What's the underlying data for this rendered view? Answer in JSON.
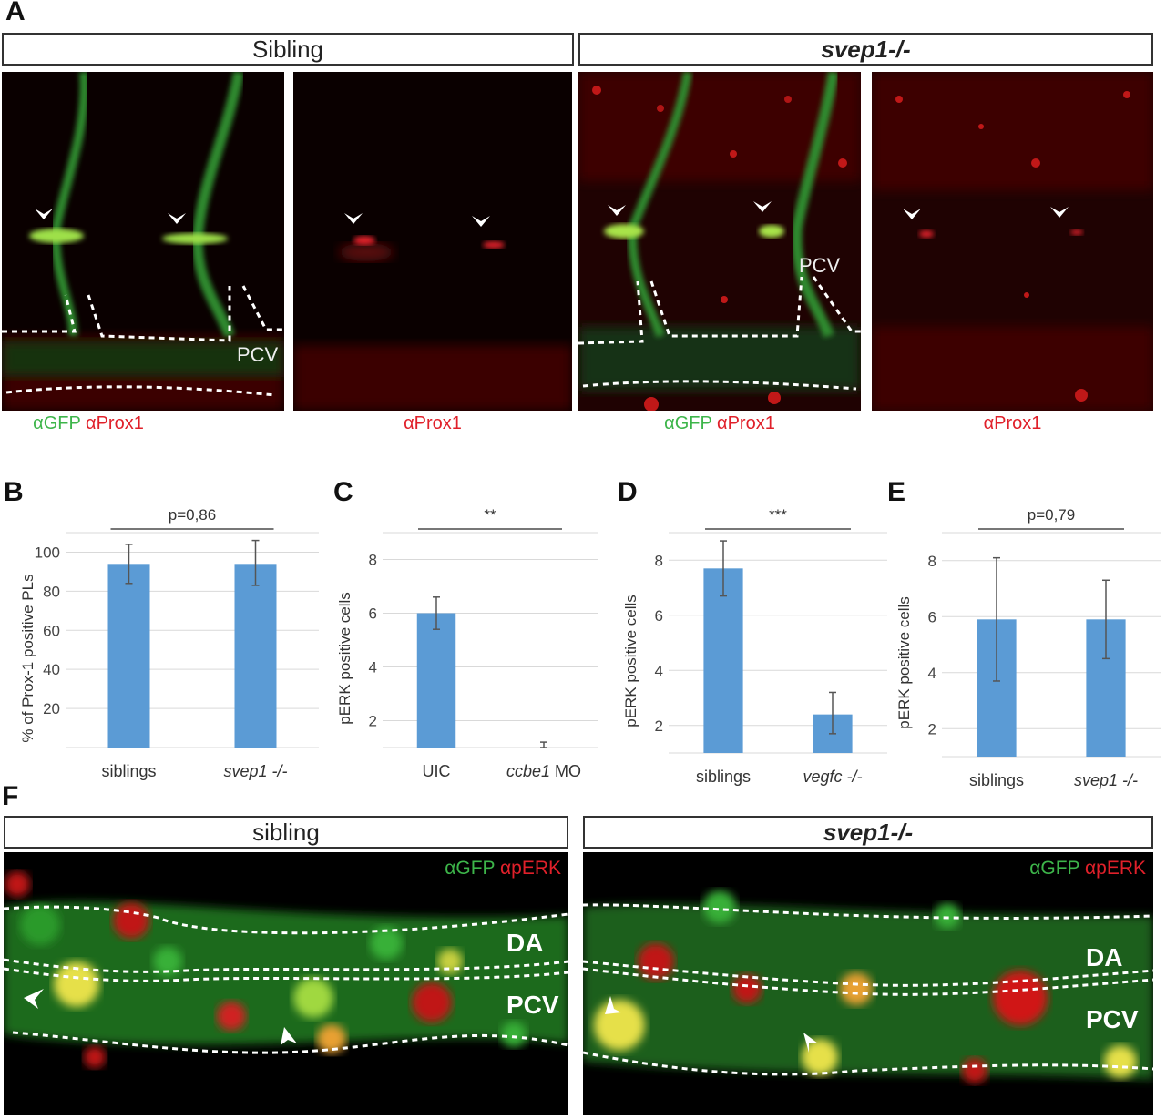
{
  "panel_labels": {
    "a": "A",
    "b": "B",
    "c": "C",
    "d": "D",
    "e": "E",
    "f": "F"
  },
  "panel_a": {
    "header_left": "Sibling",
    "header_right": "svep1-/-",
    "captions": [
      {
        "green": "αGFP",
        "red": "αProx1"
      },
      {
        "green": "",
        "red": "αProx1"
      },
      {
        "green": "αGFP",
        "red": "αProx1"
      },
      {
        "green": "",
        "red": "αProx1"
      }
    ],
    "pcv_label": "PCV"
  },
  "panel_f": {
    "header_left": "sibling",
    "header_right": "svep1-/-",
    "stain_green": "αGFP",
    "stain_red": "αpERK",
    "da_label": "DA",
    "pcv_label": "PCV"
  },
  "chart_data": [
    {
      "panel": "B",
      "type": "bar",
      "categories": [
        "siblings",
        "svep1 -/-"
      ],
      "italic_categories": [
        false,
        true
      ],
      "values": [
        94,
        94
      ],
      "error_low": [
        84,
        83
      ],
      "error_high": [
        104,
        106
      ],
      "ylabel": "% of Prox-1 positive PLs",
      "ylim": [
        0,
        110
      ],
      "yticks": [
        20,
        40,
        60,
        80,
        100
      ],
      "significance": "p=0,86",
      "color": "#5b9bd5"
    },
    {
      "panel": "C",
      "type": "bar",
      "categories": [
        "UIC",
        "ccbe1 MO"
      ],
      "category_parts": [
        [
          {
            "t": "UIC",
            "i": false
          }
        ],
        [
          {
            "t": "ccbe1",
            "i": true
          },
          {
            "t": " MO",
            "i": false
          }
        ]
      ],
      "values": [
        6.0,
        0.2
      ],
      "error_low": [
        5.4,
        0.0
      ],
      "error_high": [
        6.6,
        1.2
      ],
      "ylabel": "pERK positive cells",
      "ylim": [
        1,
        9
      ],
      "yticks": [
        2,
        4,
        6,
        8
      ],
      "significance": "**",
      "color": "#5b9bd5"
    },
    {
      "panel": "D",
      "type": "bar",
      "categories": [
        "siblings",
        "vegfc -/-"
      ],
      "italic_categories": [
        false,
        true
      ],
      "values": [
        7.7,
        2.4
      ],
      "error_low": [
        6.7,
        1.7
      ],
      "error_high": [
        8.7,
        3.2
      ],
      "ylabel": "pERK positive cells",
      "ylim": [
        1,
        9
      ],
      "yticks": [
        2,
        4,
        6,
        8
      ],
      "significance": "***",
      "color": "#5b9bd5"
    },
    {
      "panel": "E",
      "type": "bar",
      "categories": [
        "siblings",
        "svep1 -/-"
      ],
      "italic_categories": [
        false,
        true
      ],
      "values": [
        5.9,
        5.9
      ],
      "error_low": [
        3.7,
        4.5
      ],
      "error_high": [
        8.1,
        7.3
      ],
      "ylabel": "pERK positive cells",
      "ylim": [
        1,
        9
      ],
      "yticks": [
        2,
        4,
        6,
        8
      ],
      "significance": "p=0,79",
      "color": "#5b9bd5"
    }
  ]
}
